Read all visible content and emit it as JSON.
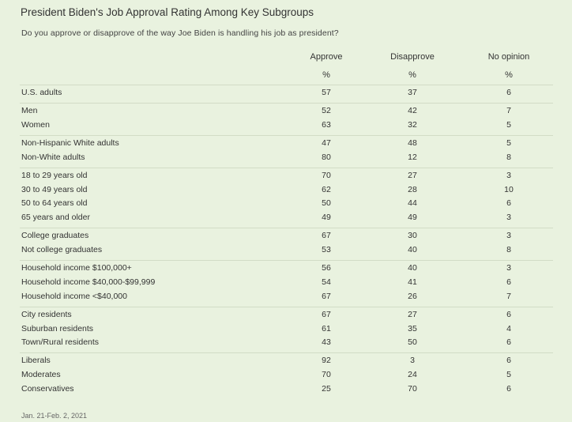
{
  "title": "President Biden's Job Approval Rating Among Key Subgroups",
  "subtitle": "Do you approve or disapprove of the way Joe Biden is handling his job as president?",
  "columns": [
    "Approve",
    "Disapprove",
    "No opinion"
  ],
  "units": [
    "%",
    "%",
    "%"
  ],
  "groups": [
    {
      "rows": [
        {
          "label": "U.S. adults",
          "values": [
            "57",
            "37",
            "6"
          ]
        }
      ]
    },
    {
      "rows": [
        {
          "label": "Men",
          "values": [
            "52",
            "42",
            "7"
          ]
        },
        {
          "label": "Women",
          "values": [
            "63",
            "32",
            "5"
          ]
        }
      ]
    },
    {
      "rows": [
        {
          "label": "Non-Hispanic White adults",
          "values": [
            "47",
            "48",
            "5"
          ]
        },
        {
          "label": "Non-White adults",
          "values": [
            "80",
            "12",
            "8"
          ]
        }
      ]
    },
    {
      "rows": [
        {
          "label": "18 to 29 years old",
          "values": [
            "70",
            "27",
            "3"
          ]
        },
        {
          "label": "30 to 49 years old",
          "values": [
            "62",
            "28",
            "10"
          ]
        },
        {
          "label": "50 to 64 years old",
          "values": [
            "50",
            "44",
            "6"
          ]
        },
        {
          "label": "65 years and older",
          "values": [
            "49",
            "49",
            "3"
          ]
        }
      ]
    },
    {
      "rows": [
        {
          "label": "College graduates",
          "values": [
            "67",
            "30",
            "3"
          ]
        },
        {
          "label": "Not college graduates",
          "values": [
            "53",
            "40",
            "8"
          ]
        }
      ]
    },
    {
      "rows": [
        {
          "label": "Household income $100,000+",
          "values": [
            "56",
            "40",
            "3"
          ]
        },
        {
          "label": "Household income $40,000-$99,999",
          "values": [
            "54",
            "41",
            "6"
          ]
        },
        {
          "label": "Household income <$40,000",
          "values": [
            "67",
            "26",
            "7"
          ]
        }
      ]
    },
    {
      "rows": [
        {
          "label": "City residents",
          "values": [
            "67",
            "27",
            "6"
          ]
        },
        {
          "label": "Suburban residents",
          "values": [
            "61",
            "35",
            "4"
          ]
        },
        {
          "label": "Town/Rural residents",
          "values": [
            "43",
            "50",
            "6"
          ]
        }
      ]
    },
    {
      "rows": [
        {
          "label": "Liberals",
          "values": [
            "92",
            "3",
            "6"
          ]
        },
        {
          "label": "Moderates",
          "values": [
            "70",
            "24",
            "5"
          ]
        },
        {
          "label": "Conservatives",
          "values": [
            "25",
            "70",
            "6"
          ]
        }
      ]
    }
  ],
  "footer": "Jan. 21-Feb. 2, 2021"
}
